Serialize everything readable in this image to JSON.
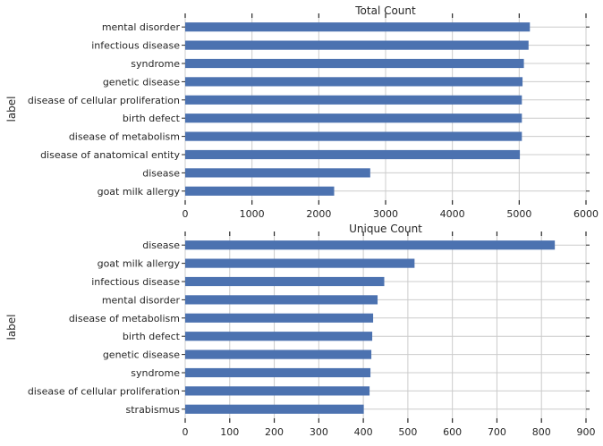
{
  "chart_data": [
    {
      "type": "bar",
      "orientation": "horizontal",
      "title": "Total Count",
      "ylabel": "label",
      "xlabel": "",
      "xlim": [
        0,
        6000
      ],
      "xticks": [
        0,
        1000,
        2000,
        3000,
        4000,
        5000,
        6000
      ],
      "grid": true,
      "bar_color": "#4c72b0",
      "categories": [
        "mental disorder",
        "infectious disease",
        "syndrome",
        "genetic disease",
        "disease of cellular proliferation",
        "birth defect",
        "disease of metabolism",
        "disease of anatomical entity",
        "disease",
        "goat milk allergy"
      ],
      "values": [
        5160,
        5140,
        5070,
        5050,
        5040,
        5040,
        5040,
        5010,
        2770,
        2230
      ]
    },
    {
      "type": "bar",
      "orientation": "horizontal",
      "title": "Unique Count",
      "ylabel": "label",
      "xlabel": "",
      "xlim": [
        0,
        900
      ],
      "xticks": [
        0,
        100,
        200,
        300,
        400,
        500,
        600,
        700,
        800,
        900
      ],
      "grid": true,
      "bar_color": "#4c72b0",
      "categories": [
        "disease",
        "goat milk allergy",
        "infectious disease",
        "mental disorder",
        "disease of metabolism",
        "birth defect",
        "genetic disease",
        "syndrome",
        "disease of cellular proliferation",
        "strabismus"
      ],
      "values": [
        830,
        515,
        447,
        432,
        422,
        420,
        418,
        416,
        414,
        401
      ]
    }
  ]
}
